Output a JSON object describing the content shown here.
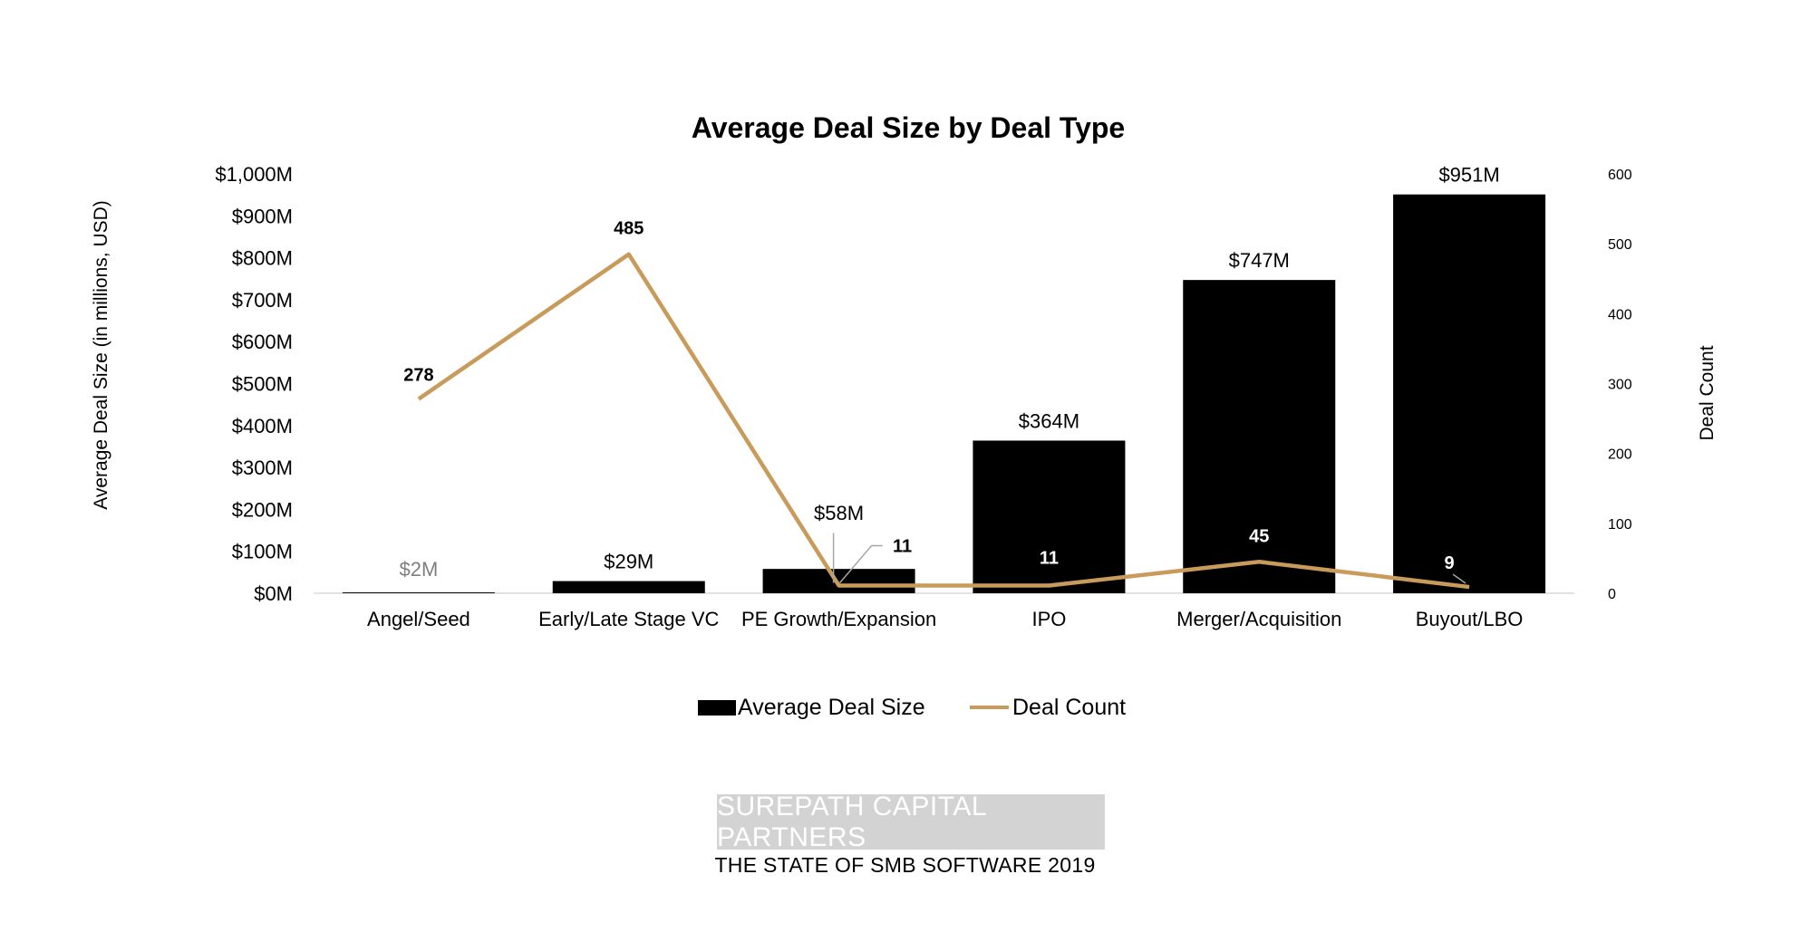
{
  "chart_data": {
    "type": "bar",
    "title": "Average Deal Size by Deal Type",
    "categories": [
      "Angel/Seed",
      "Early/Late Stage VC",
      "PE Growth/Expansion",
      "IPO",
      "Merger/Acquisition",
      "Buyout/LBO"
    ],
    "series": [
      {
        "name": "Average Deal Size",
        "type": "bar",
        "axis": "left",
        "values": [
          2,
          29,
          58,
          364,
          747,
          951
        ],
        "labels": [
          "$2M",
          "$29M",
          "$58M",
          "$364M",
          "$747M",
          "$951M"
        ],
        "color": "#000000"
      },
      {
        "name": "Deal Count",
        "type": "line",
        "axis": "right",
        "values": [
          278,
          485,
          11,
          11,
          45,
          9
        ],
        "labels": [
          "278",
          "485",
          "11",
          "11",
          "45",
          "9"
        ],
        "color": "#c89b5a"
      }
    ],
    "ylabel": "Average Deal Size (in millions, USD)",
    "y2label": "Deal Count",
    "ylim": [
      0,
      1000
    ],
    "y2lim": [
      0,
      600
    ],
    "yticks": [
      "$0M",
      "$100M",
      "$200M",
      "$300M",
      "$400M",
      "$500M",
      "$600M",
      "$700M",
      "$800M",
      "$900M",
      "$1,000M"
    ],
    "y2ticks": [
      "0",
      "100",
      "200",
      "300",
      "400",
      "500",
      "600"
    ],
    "legend_position": "bottom",
    "grid": false
  },
  "footer": {
    "brand": "SUREPATH CAPITAL PARTNERS",
    "subtitle": "THE STATE OF SMB SOFTWARE 2019"
  }
}
